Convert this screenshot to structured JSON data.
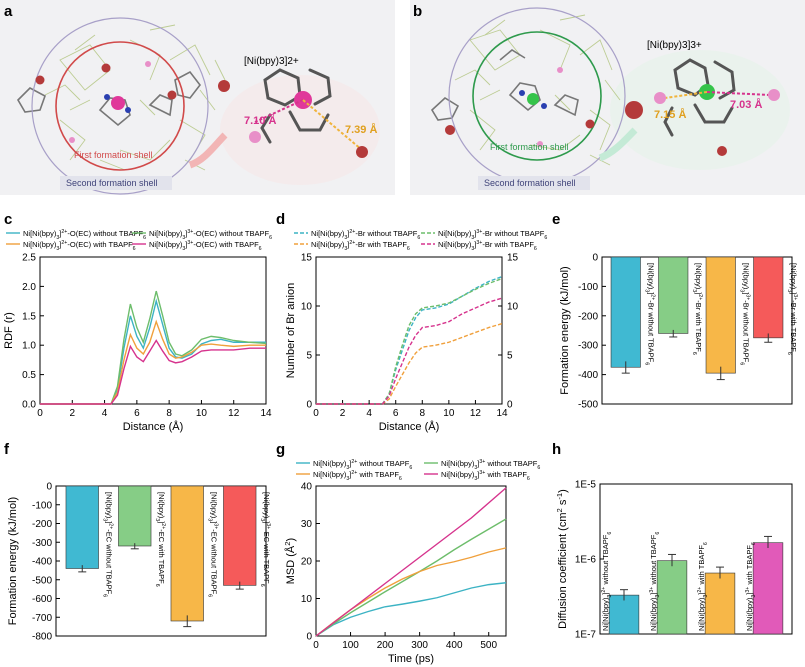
{
  "panels": {
    "a": {
      "letter": "a",
      "complex": "[Ni(bpy)3]2+",
      "dist1": "7.10 Å",
      "dist2": "7.39 Å",
      "first_shell": "First formation shell",
      "second_shell": "Second formation shell"
    },
    "b": {
      "letter": "b",
      "complex": "[Ni(bpy)3]3+",
      "dist1": "7.15 Å",
      "dist2": "7.03 Å",
      "first_shell": "First formation shell",
      "second_shell": "Second formation shell"
    }
  },
  "colors": {
    "teal": "#3cb3c4",
    "green": "#6dbd6b",
    "orange": "#f0a03c",
    "magenta": "#d6338d",
    "bar_blue": "#40b9d2",
    "bar_green": "#86cd86",
    "bar_orange": "#f7b748",
    "bar_red": "#f55a5a"
  },
  "chart_data": [
    {
      "panel": "c",
      "type": "line",
      "xlabel": "Distance (Å)",
      "ylabel": "RDF (r)",
      "xlim": [
        0,
        14
      ],
      "ylim": [
        0,
        2.5
      ],
      "xticks": [
        "0",
        "2",
        "4",
        "6",
        "8",
        "10",
        "12",
        "14"
      ],
      "yticks": [
        "0.0",
        "0.5",
        "1.0",
        "1.5",
        "2.0",
        "2.5"
      ],
      "legend": [
        "Ni[Ni(bpy)3]2+-O(EC) without TBAPF6",
        "Ni[Ni(bpy)3]3+-O(EC) without TBAPF6",
        "Ni[Ni(bpy)3]2+-O(EC) with TBAPF6",
        "Ni[Ni(bpy)3]3+-O(EC) with TBAPF6"
      ],
      "x": [
        0,
        4.4,
        4.8,
        5.2,
        5.6,
        6.0,
        6.4,
        6.8,
        7.2,
        7.6,
        8.0,
        8.4,
        8.8,
        9.4,
        10.0,
        10.6,
        11.2,
        12.0,
        13.0,
        14.0
      ],
      "series": [
        {
          "name": "Ni[Ni(bpy)3]2+-O(EC) without TBAPF6",
          "values": [
            0,
            0,
            0.25,
            0.95,
            1.5,
            1.15,
            0.95,
            1.3,
            1.75,
            1.35,
            0.95,
            0.8,
            0.78,
            0.85,
            1.02,
            1.08,
            1.1,
            1.05,
            1.05,
            1.05
          ]
        },
        {
          "name": "Ni[Ni(bpy)3]3+-O(EC) without TBAPF6",
          "values": [
            0,
            0,
            0.3,
            1.1,
            1.7,
            1.3,
            1.05,
            1.45,
            1.92,
            1.5,
            1.05,
            0.85,
            0.82,
            0.92,
            1.1,
            1.15,
            1.13,
            1.08,
            1.05,
            1.03
          ]
        },
        {
          "name": "Ni[Ni(bpy)3]2+-O(EC) with TBAPF6",
          "values": [
            0,
            0,
            0.2,
            0.75,
            1.18,
            0.95,
            0.85,
            1.05,
            1.4,
            1.1,
            0.85,
            0.78,
            0.8,
            0.88,
            1.0,
            1.02,
            1.0,
            0.98,
            1.0,
            1.0
          ]
        },
        {
          "name": "Ni[Ni(bpy)3]3+-O(EC) with TBAPF6",
          "values": [
            0,
            0,
            0.15,
            0.6,
            0.98,
            0.8,
            0.72,
            0.9,
            1.08,
            0.9,
            0.74,
            0.7,
            0.72,
            0.8,
            0.9,
            0.92,
            0.92,
            0.92,
            0.95,
            0.95
          ]
        }
      ]
    },
    {
      "panel": "d",
      "type": "line",
      "xlabel": "Distance (Å)",
      "ylabel": "Number of Br anion",
      "xlim": [
        0,
        14
      ],
      "ylim": [
        0,
        15
      ],
      "xticks": [
        "0",
        "2",
        "4",
        "6",
        "8",
        "10",
        "12",
        "14"
      ],
      "yticks": [
        "0",
        "5",
        "10",
        "15"
      ],
      "legend": [
        "Ni[Ni(bpy)3]2+-Br without TBAPF6",
        "Ni[Ni(bpy)3]3+-Br without TBAPF6",
        "Ni[Ni(bpy)3]2+-Br with TBAPF6",
        "Ni[Ni(bpy)3]3+-Br with TBAPF6"
      ],
      "x": [
        0,
        5.0,
        5.5,
        6.0,
        6.5,
        7.0,
        7.5,
        8.0,
        9.0,
        10.0,
        11.0,
        12.0,
        13.0,
        14.0
      ],
      "series": [
        {
          "name": "Ni[Ni(bpy)3]2+-Br without TBAPF6",
          "values": [
            0,
            0,
            1.0,
            3.5,
            5.5,
            7.5,
            8.8,
            9.6,
            9.8,
            10.2,
            11.0,
            11.8,
            12.5,
            13.0
          ]
        },
        {
          "name": "Ni[Ni(bpy)3]3+-Br without TBAPF6",
          "values": [
            0,
            0,
            1.0,
            3.8,
            6.0,
            8.0,
            9.2,
            9.8,
            10.0,
            10.3,
            11.0,
            11.7,
            12.3,
            12.8
          ]
        },
        {
          "name": "Ni[Ni(bpy)3]2+-Br with TBAPF6",
          "values": [
            0,
            0,
            0.5,
            1.8,
            3.0,
            4.2,
            5.2,
            5.8,
            6.0,
            6.3,
            6.8,
            7.3,
            7.8,
            8.2
          ]
        },
        {
          "name": "Ni[Ni(bpy)3]3+-Br with TBAPF6",
          "values": [
            0,
            0,
            0.8,
            2.6,
            4.2,
            5.8,
            7.0,
            7.8,
            8.0,
            8.4,
            9.2,
            9.8,
            10.4,
            10.8
          ]
        }
      ]
    },
    {
      "panel": "e",
      "type": "bar",
      "ylabel": "Formation energy (kJ/mol)",
      "ylim": [
        -500,
        0
      ],
      "yticks": [
        "0",
        "-100",
        "-200",
        "-300",
        "-400",
        "-500"
      ],
      "categories": [
        "[Ni(bpy)3]2+-Br without TBAPF6",
        "[Ni(bpy)3]2+-Br with TBAPF6",
        "[Ni(bpy)3]3+-Br without TBAPF6",
        "[Ni(bpy)3]3+-Br with TBAPF6"
      ],
      "values": [
        -375,
        -260,
        -395,
        -275
      ],
      "errors": [
        20,
        12,
        22,
        15
      ]
    },
    {
      "panel": "f",
      "type": "bar",
      "ylabel": "Formation energy (kJ/mol)",
      "ylim": [
        -800,
        0
      ],
      "yticks": [
        "0",
        "-100",
        "-200",
        "-300",
        "-400",
        "-500",
        "-600",
        "-700",
        "-800"
      ],
      "categories": [
        "[Ni(bpy)3]2+-EC without TBAPF6",
        "[Ni(bpy)3]2+-EC with TBAPF6",
        "[Ni(bpy)3]3+-EC without TBAPF6",
        "[Ni(bpy)3]3+-EC with TBAPF6"
      ],
      "values": [
        -440,
        -320,
        -720,
        -530
      ],
      "errors": [
        18,
        15,
        30,
        20
      ]
    },
    {
      "panel": "g",
      "type": "line",
      "xlabel": "Time (ps)",
      "ylabel": "MSD (Å2)",
      "xlim": [
        0,
        550
      ],
      "ylim": [
        0,
        40
      ],
      "xticks": [
        "0",
        "100",
        "200",
        "300",
        "400",
        "500"
      ],
      "yticks": [
        "0",
        "10",
        "20",
        "30",
        "40"
      ],
      "legend": [
        "Ni[Ni(bpy)3]2+ without TBAPF6",
        "Ni[Ni(bpy)3]3+ without TBAPF6",
        "Ni[Ni(bpy)3]2+ with TBAPF6",
        "Ni[Ni(bpy)3]3+ with TBAPF6"
      ],
      "x": [
        0,
        50,
        100,
        150,
        200,
        250,
        300,
        350,
        400,
        450,
        500,
        550
      ],
      "series": [
        {
          "name": "Ni[Ni(bpy)3]2+ without TBAPF6",
          "values": [
            0,
            3.0,
            5.0,
            6.5,
            7.8,
            8.5,
            9.3,
            10.2,
            11.5,
            12.8,
            13.7,
            14.2
          ]
        },
        {
          "name": "Ni[Ni(bpy)3]3+ without TBAPF6",
          "values": [
            0,
            3.2,
            6.2,
            9.0,
            11.8,
            14.5,
            17.2,
            20.0,
            23.0,
            25.8,
            28.5,
            31.2
          ]
        },
        {
          "name": "Ni[Ni(bpy)3]2+ with TBAPF6",
          "values": [
            0,
            3.6,
            7.0,
            10.0,
            12.8,
            15.2,
            17.2,
            18.8,
            19.8,
            21.0,
            22.4,
            23.5
          ]
        },
        {
          "name": "Ni[Ni(bpy)3]3+ with TBAPF6",
          "values": [
            0,
            3.5,
            7.0,
            10.5,
            14.0,
            17.5,
            21.0,
            24.5,
            28.0,
            31.5,
            35.5,
            39.5
          ]
        }
      ]
    },
    {
      "panel": "h",
      "type": "bar",
      "ylabel": "Diffusion coefficient (cm2 s-1)",
      "yscale": "log",
      "ylim": [
        1e-07,
        1e-05
      ],
      "yticks": [
        "1E-7",
        "1E-6",
        "1E-5"
      ],
      "categories": [
        "Ni[Ni(bpy)3]2+ without TBAPF6",
        "Ni[Ni(bpy)3]3+ without TBAPF6",
        "Ni[Ni(bpy)3]2+ with TBAPF6",
        "Ni[Ni(bpy)3]3+ with TBAPF6"
      ],
      "values": [
        3.3e-07,
        9.5e-07,
        6.5e-07,
        1.65e-06
      ],
      "errors_upper": [
        3.9e-07,
        1.15e-06,
        7.8e-07,
        2e-06
      ],
      "errors_lower": [
        2.8e-07,
        8e-07,
        5.5e-07,
        1.4e-06
      ]
    }
  ]
}
